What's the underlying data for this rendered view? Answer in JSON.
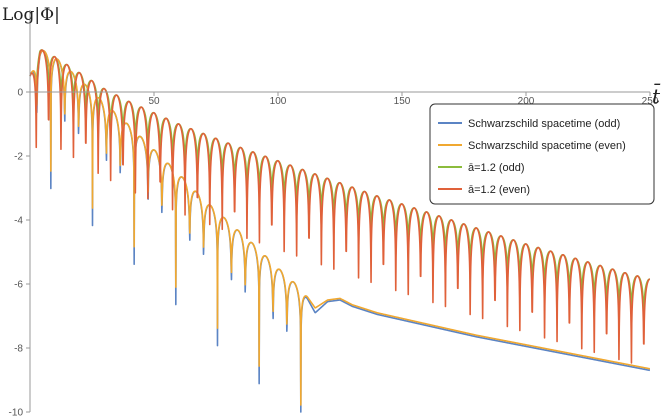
{
  "chart_data": {
    "type": "line",
    "ylabel": "Log|Φ|",
    "xlabel": "t̄",
    "xlim": [
      0,
      250
    ],
    "ylim": [
      -10,
      1.6
    ],
    "x_ticks": [
      "50",
      "100",
      "150",
      "200",
      "250"
    ],
    "y_ticks": [
      "0",
      "-2",
      "-4",
      "-6",
      "-8",
      "-10"
    ],
    "y_tick_values": [
      0,
      -2,
      -4,
      -6,
      -8,
      -10
    ],
    "x_tick_values": [
      50,
      100,
      150,
      200,
      250
    ],
    "grid": false,
    "legend_position": "top-right",
    "series": [
      {
        "name": "Schwarzschild spacetime (odd)",
        "color": "#5b84c4",
        "envelope_x": [
          0,
          4,
          10,
          20,
          30,
          40,
          50,
          60,
          70,
          80,
          90,
          100,
          110,
          115,
          120,
          125,
          130,
          140,
          160,
          180,
          200,
          220,
          240,
          250
        ],
        "envelope_y": [
          0.5,
          1.35,
          1.1,
          0.4,
          -0.35,
          -1.05,
          -1.8,
          -2.55,
          -3.35,
          -4.05,
          -4.75,
          -5.5,
          -6.2,
          -6.9,
          -6.55,
          -6.5,
          -6.7,
          -6.95,
          -7.3,
          -7.65,
          -7.95,
          -8.25,
          -8.55,
          -8.7
        ],
        "dip_depth": 2.3
      },
      {
        "name": "Schwarzschild spacetime (even)",
        "color": "#f0a830",
        "envelope_x": [
          0,
          4,
          10,
          20,
          30,
          40,
          50,
          60,
          70,
          80,
          90,
          100,
          110,
          115,
          120,
          125,
          130,
          140,
          160,
          180,
          200,
          220,
          240,
          250
        ],
        "envelope_y": [
          0.5,
          1.35,
          1.1,
          0.4,
          -0.35,
          -1.05,
          -1.8,
          -2.55,
          -3.35,
          -4.05,
          -4.75,
          -5.5,
          -6.2,
          -6.75,
          -6.5,
          -6.45,
          -6.65,
          -6.9,
          -7.25,
          -7.6,
          -7.9,
          -8.2,
          -8.5,
          -8.65
        ],
        "dip_depth": 2.0
      },
      {
        "name": "ā=1.2 (odd)",
        "color": "#8cbc3c",
        "envelope_x": [
          0,
          4,
          10,
          20,
          30,
          40,
          60,
          80,
          100,
          120,
          140,
          160,
          180,
          200,
          220,
          240,
          250
        ],
        "envelope_y": [
          0.5,
          1.35,
          1.1,
          0.6,
          0.1,
          -0.3,
          -1.0,
          -1.6,
          -2.15,
          -2.7,
          -3.25,
          -3.75,
          -4.25,
          -4.75,
          -5.2,
          -5.65,
          -5.85
        ],
        "dip_depth": 1.9
      },
      {
        "name": "ā=1.2 (even)",
        "color": "#e0613a",
        "envelope_x": [
          0,
          4,
          10,
          20,
          30,
          40,
          60,
          80,
          100,
          120,
          140,
          160,
          180,
          200,
          220,
          240,
          250
        ],
        "envelope_y": [
          0.5,
          1.35,
          1.1,
          0.6,
          0.1,
          -0.3,
          -1.0,
          -1.6,
          -2.15,
          -2.7,
          -3.25,
          -3.75,
          -4.25,
          -4.75,
          -5.2,
          -5.65,
          -5.85
        ],
        "dip_depth": 3.2
      }
    ]
  }
}
